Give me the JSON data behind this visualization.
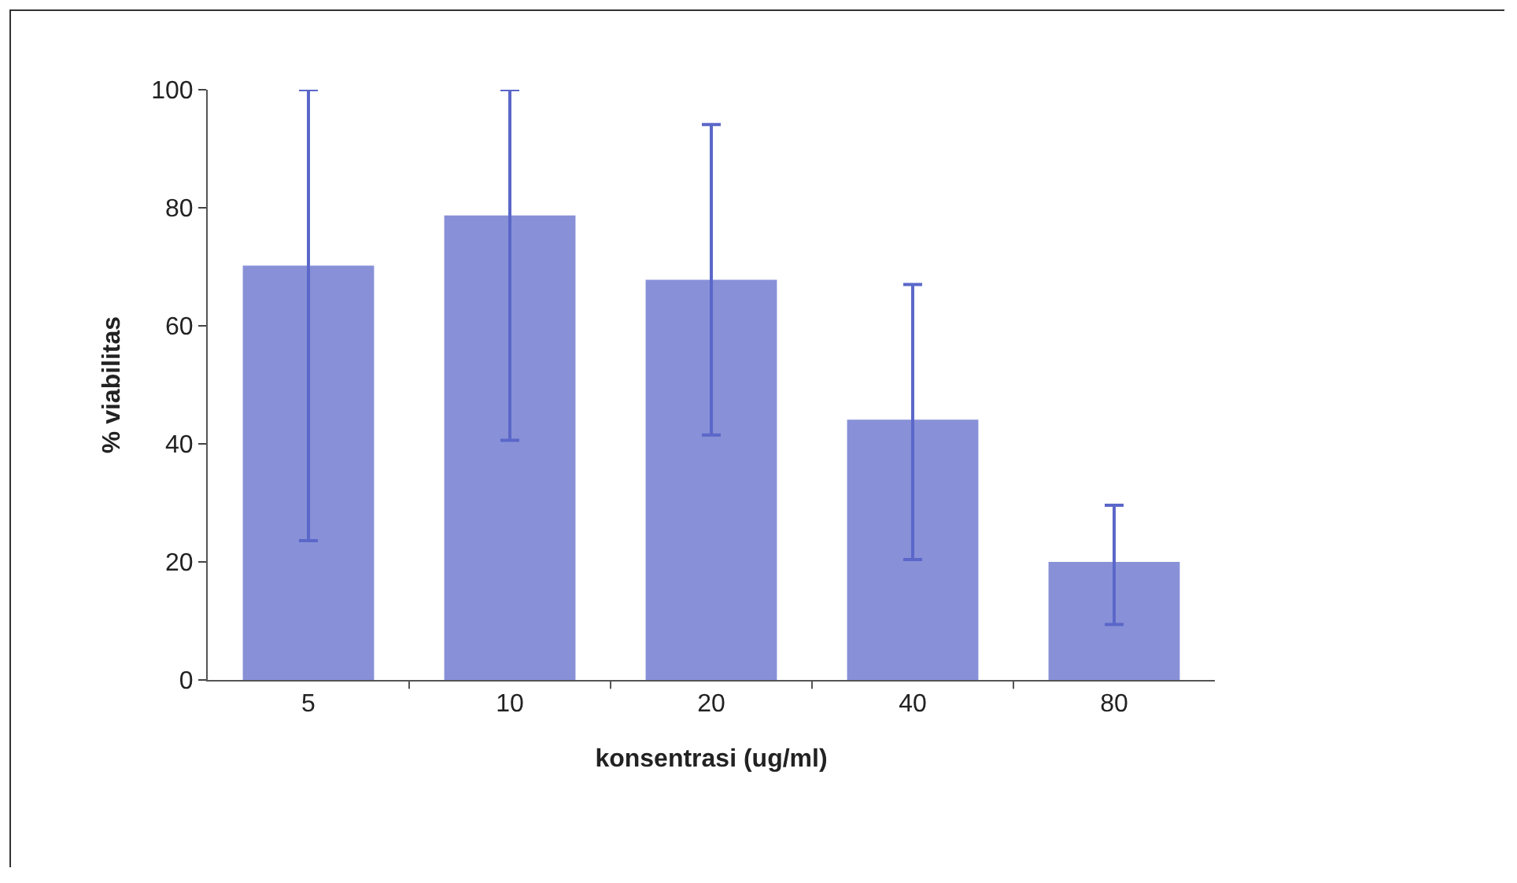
{
  "chart_data": {
    "type": "bar",
    "xlabel": "konsentrasi (ug/ml)",
    "ylabel": "% viabilitas",
    "categories": [
      "5",
      "10",
      "20",
      "40",
      "80"
    ],
    "values": [
      70,
      78.5,
      67.6,
      43.9,
      19.8
    ],
    "errors": [
      [
        23.6,
        100
      ],
      [
        40.6,
        100
      ],
      [
        41.5,
        94.1
      ],
      [
        20.4,
        67
      ],
      [
        9.4,
        29.6
      ]
    ],
    "color": "#5b67c9",
    "ylim": [
      0,
      100
    ],
    "yticks": [
      0,
      20,
      40,
      60,
      80,
      100
    ],
    "grid": false,
    "legend": false
  }
}
